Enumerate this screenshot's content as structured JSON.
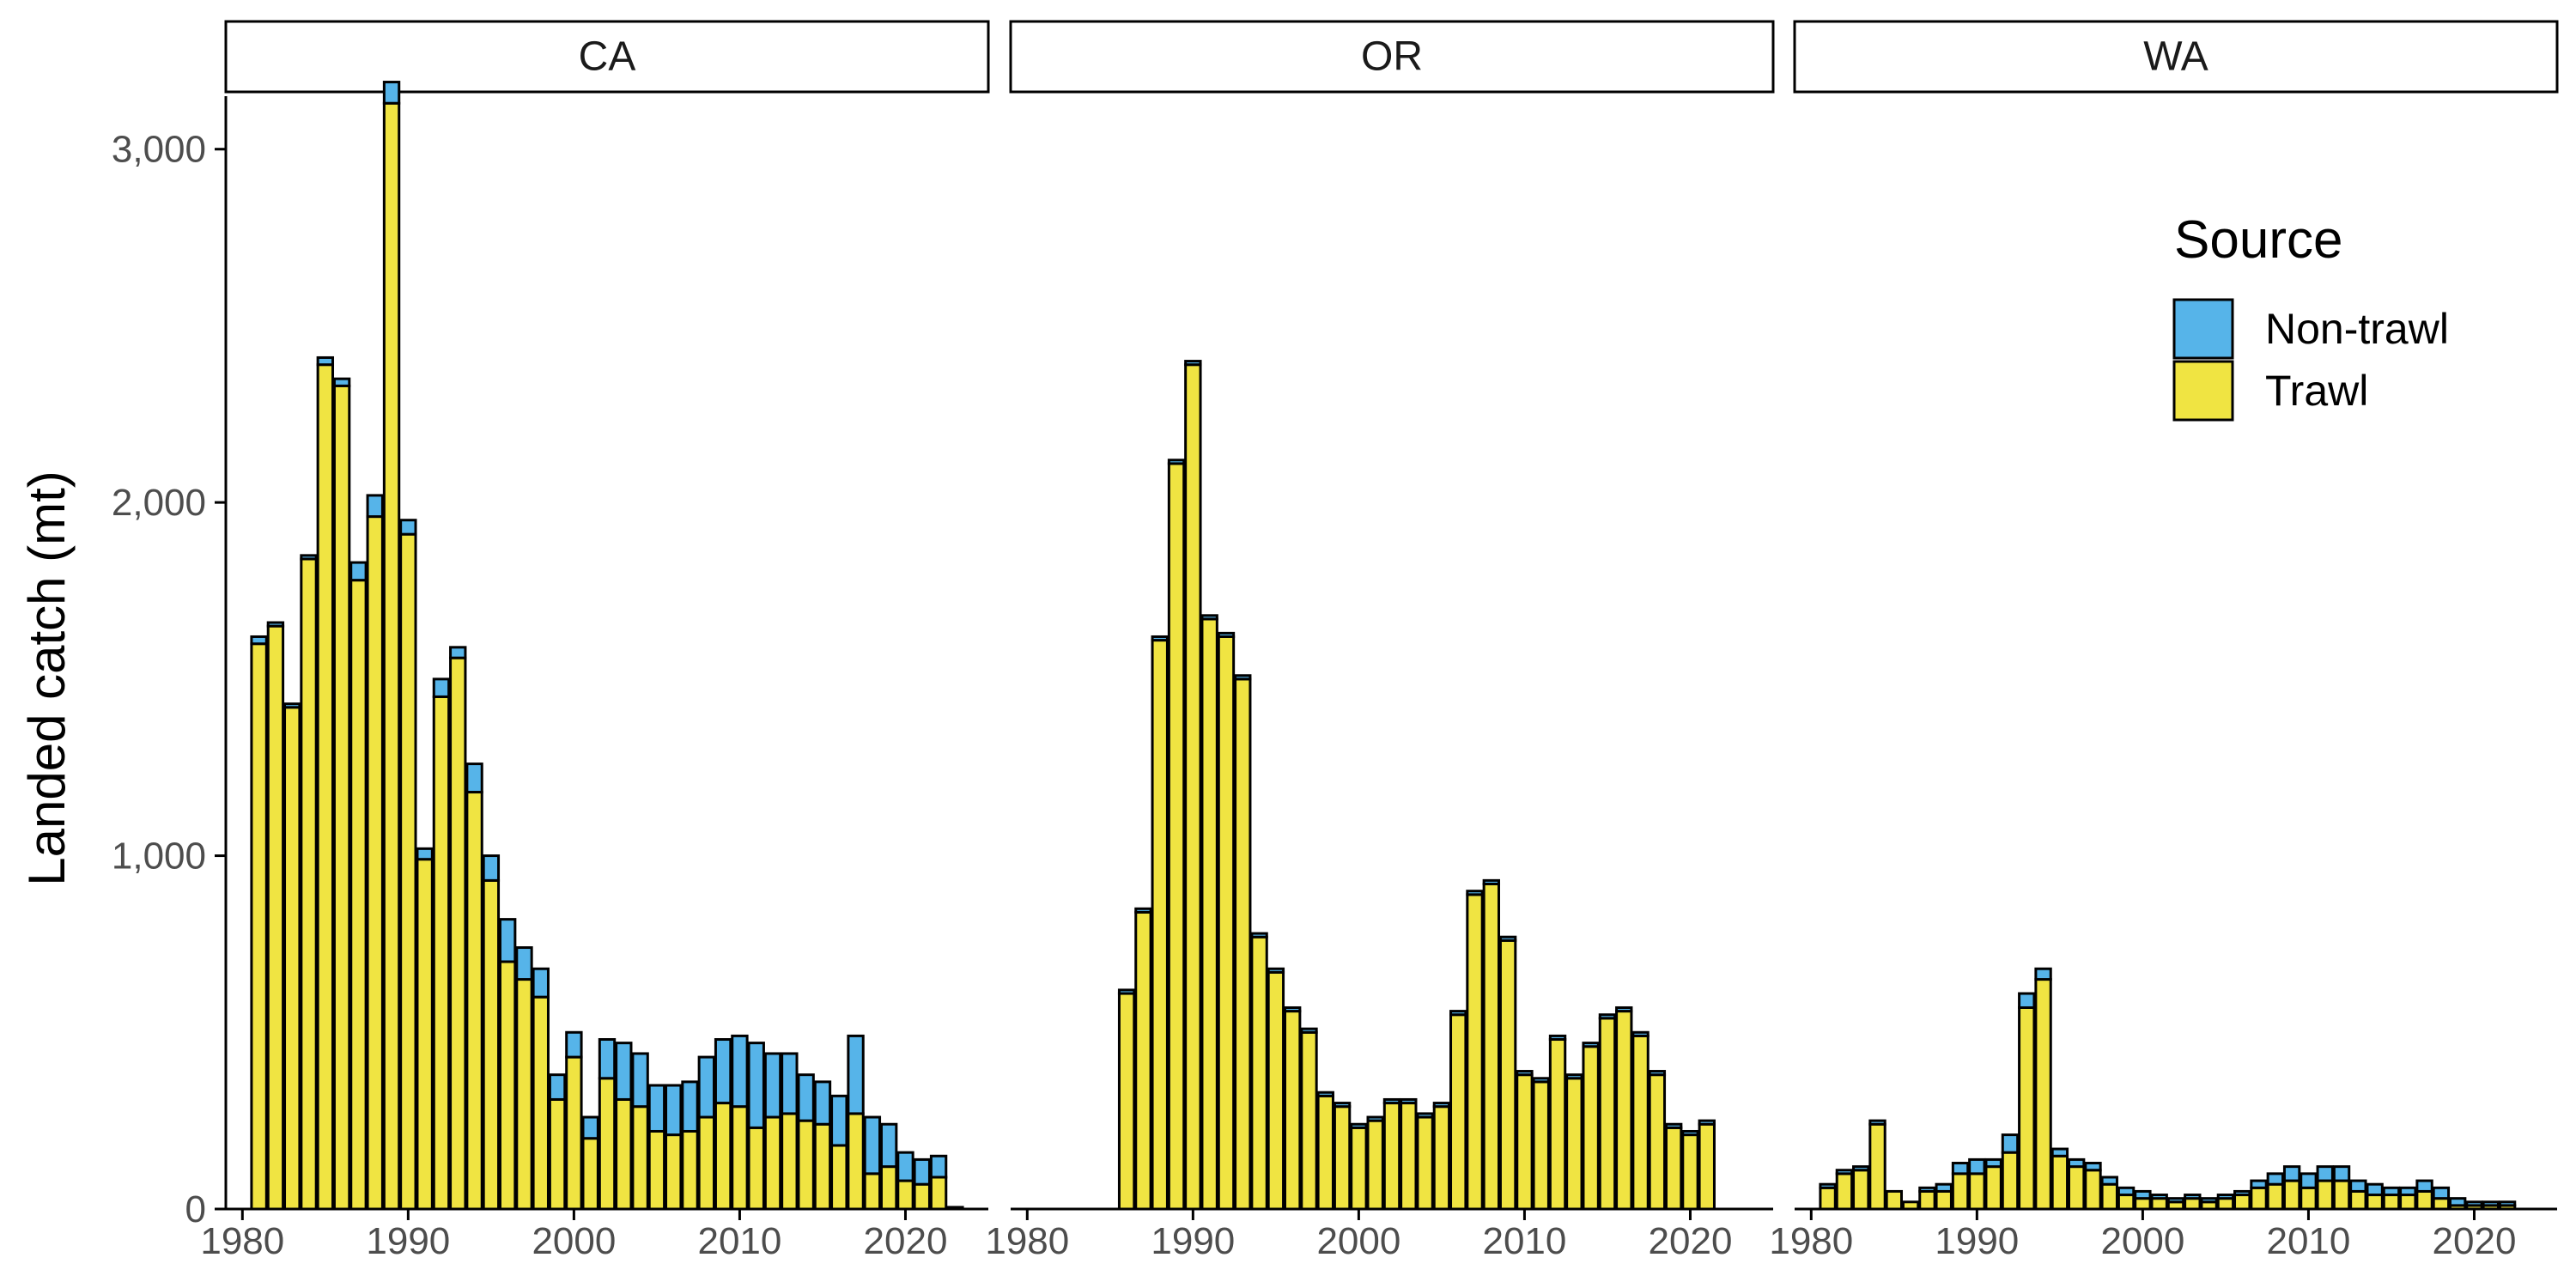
{
  "chart_data": {
    "type": "bar",
    "stacked": true,
    "ylabel": "Landed catch (mt)",
    "ylim": [
      0,
      3150
    ],
    "y_ticks": [
      0,
      1000,
      2000,
      3000
    ],
    "y_tick_labels": [
      "0",
      "1,000",
      "2,000",
      "3,000"
    ],
    "x_ticks": [
      1980,
      1990,
      2000,
      2010,
      2020
    ],
    "xlim": [
      1979,
      2025
    ],
    "years": [
      1981,
      1982,
      1983,
      1984,
      1985,
      1986,
      1987,
      1988,
      1989,
      1990,
      1991,
      1992,
      1993,
      1994,
      1995,
      1996,
      1997,
      1998,
      1999,
      2000,
      2001,
      2002,
      2003,
      2004,
      2005,
      2006,
      2007,
      2008,
      2009,
      2010,
      2011,
      2012,
      2013,
      2014,
      2015,
      2016,
      2017,
      2018,
      2019,
      2020,
      2021,
      2022,
      2023
    ],
    "legend": {
      "title": "Source",
      "position": "top-right",
      "entries": [
        {
          "name": "Non-trawl",
          "color": "#56B4E9"
        },
        {
          "name": "Trawl",
          "color": "#F0E442"
        }
      ]
    },
    "colors": {
      "non_trawl": "#56B4E9",
      "trawl": "#F0E442"
    },
    "panels": [
      {
        "label": "CA",
        "trawl": [
          1600,
          1650,
          1420,
          1840,
          2390,
          2330,
          1780,
          1960,
          3130,
          1910,
          990,
          1450,
          1560,
          1180,
          930,
          700,
          650,
          600,
          310,
          430,
          200,
          370,
          310,
          290,
          220,
          210,
          220,
          260,
          300,
          290,
          230,
          260,
          270,
          250,
          240,
          180,
          270,
          100,
          120,
          80,
          70,
          90,
          0
        ],
        "non_trawl": [
          20,
          10,
          10,
          10,
          20,
          20,
          50,
          60,
          60,
          40,
          30,
          50,
          30,
          80,
          70,
          120,
          90,
          80,
          70,
          70,
          60,
          110,
          160,
          150,
          130,
          140,
          140,
          170,
          180,
          200,
          240,
          180,
          170,
          130,
          120,
          140,
          220,
          160,
          120,
          80,
          70,
          60,
          5
        ]
      },
      {
        "label": "OR",
        "trawl": [
          0,
          0,
          0,
          0,
          0,
          610,
          840,
          1610,
          2110,
          2390,
          1670,
          1620,
          1500,
          770,
          670,
          560,
          500,
          320,
          290,
          230,
          250,
          300,
          300,
          260,
          290,
          550,
          890,
          920,
          760,
          380,
          360,
          480,
          370,
          460,
          540,
          560,
          490,
          380,
          230,
          210,
          240,
          0,
          0
        ],
        "non_trawl": [
          0,
          0,
          0,
          0,
          0,
          10,
          10,
          10,
          10,
          10,
          10,
          10,
          10,
          10,
          10,
          10,
          10,
          10,
          10,
          10,
          10,
          10,
          10,
          10,
          10,
          10,
          10,
          10,
          10,
          10,
          10,
          10,
          10,
          10,
          10,
          10,
          10,
          10,
          10,
          10,
          10,
          0,
          0
        ]
      },
      {
        "label": "WA",
        "trawl": [
          60,
          100,
          110,
          240,
          50,
          20,
          50,
          50,
          100,
          100,
          120,
          160,
          570,
          650,
          150,
          120,
          110,
          70,
          40,
          30,
          30,
          20,
          30,
          20,
          30,
          40,
          60,
          70,
          80,
          60,
          80,
          80,
          50,
          40,
          40,
          40,
          50,
          30,
          10,
          10,
          10,
          10,
          0
        ],
        "non_trawl": [
          10,
          10,
          10,
          10,
          0,
          0,
          10,
          20,
          30,
          40,
          20,
          50,
          40,
          30,
          20,
          20,
          20,
          20,
          20,
          20,
          10,
          10,
          10,
          10,
          10,
          10,
          20,
          30,
          40,
          40,
          40,
          40,
          30,
          30,
          20,
          20,
          30,
          30,
          20,
          10,
          10,
          10,
          0
        ]
      }
    ]
  }
}
